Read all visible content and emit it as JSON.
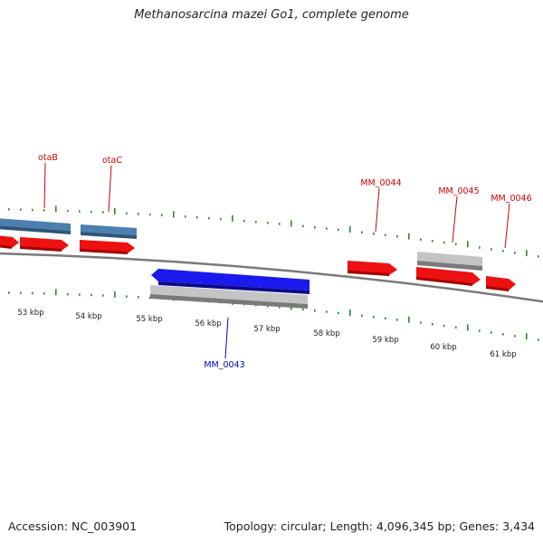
{
  "header": {
    "title": "Methanosarcina mazei Go1, complete genome"
  },
  "footer": {
    "accession": "Accession: NC_003901",
    "summary": "Topology: circular; Length: 4,096,345 bp; Genes: 3,434"
  },
  "colors": {
    "forward_cds": "#ee1111",
    "named_gene": "#4a7fb0",
    "highlight": "#1a1aee",
    "other": "#b8b8b8",
    "backbone": "#808080",
    "ticks": "#2a8a2a",
    "label_red": "#cc0000",
    "label_blue": "#0000cc"
  },
  "ruler": {
    "ticks": [
      "53 kbp",
      "54 kbp",
      "55 kbp",
      "56 kbp",
      "57 kbp",
      "58 kbp",
      "59 kbp",
      "60 kbp",
      "61 kbp"
    ]
  },
  "labels": [
    {
      "text": "otaB",
      "color": "red"
    },
    {
      "text": "otaC",
      "color": "red"
    },
    {
      "text": "MM_0044",
      "color": "red"
    },
    {
      "text": "MM_0045",
      "color": "red"
    },
    {
      "text": "MM_0046",
      "color": "red"
    },
    {
      "text": "MM_0043",
      "color": "blue"
    }
  ]
}
